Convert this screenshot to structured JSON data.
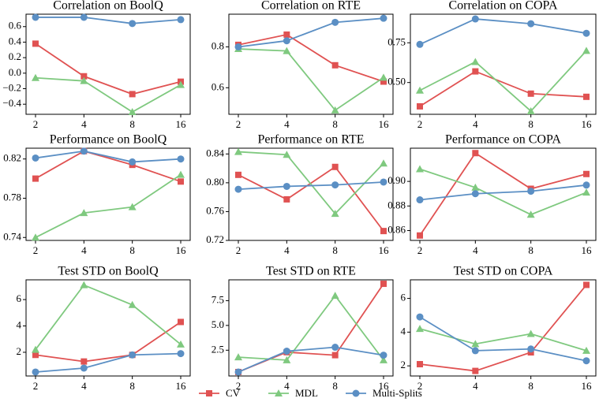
{
  "chart_data": [
    {
      "type": "line",
      "title": "Correlation on BoolQ",
      "categories": [
        "2",
        "4",
        "8",
        "16"
      ],
      "ylim": [
        -0.53,
        0.76
      ],
      "yticks": [
        {
          "value": -0.4,
          "label": "−0.4"
        },
        {
          "value": -0.2,
          "label": "−0.2"
        },
        {
          "value": 0,
          "label": "0.0"
        },
        0.2,
        0.4,
        0.6
      ],
      "series": [
        {
          "name": "CV",
          "color": "#e05252",
          "marker": "square",
          "values": [
            0.38,
            -0.04,
            -0.27,
            -0.11
          ]
        },
        {
          "name": "MDL",
          "color": "#7fc97f",
          "marker": "triangle",
          "values": [
            -0.06,
            -0.1,
            -0.5,
            -0.15
          ]
        },
        {
          "name": "Multi-Splits",
          "color": "#5b8fc4",
          "marker": "circle",
          "values": [
            0.72,
            0.72,
            0.64,
            0.69
          ]
        }
      ]
    },
    {
      "type": "line",
      "title": "Correlation on RTE",
      "categories": [
        "2",
        "4",
        "8",
        "16"
      ],
      "ylim": [
        0.47,
        0.96
      ],
      "yticks": [
        0.6,
        0.8
      ],
      "series": [
        {
          "name": "CV",
          "color": "#e05252",
          "marker": "square",
          "values": [
            0.81,
            0.86,
            0.71,
            0.63
          ]
        },
        {
          "name": "MDL",
          "color": "#7fc97f",
          "marker": "triangle",
          "values": [
            0.79,
            0.78,
            0.49,
            0.65
          ]
        },
        {
          "name": "Multi-Splits",
          "color": "#5b8fc4",
          "marker": "circle",
          "values": [
            0.8,
            0.83,
            0.92,
            0.94
          ]
        }
      ]
    },
    {
      "type": "line",
      "title": "Correlation on COPA",
      "categories": [
        "2",
        "4",
        "8",
        "16"
      ],
      "ylim": [
        0.3,
        0.93
      ],
      "yticks": [
        {
          "value": 0.5,
          "label": "0.50"
        },
        {
          "value": 0.75,
          "label": "0.75"
        }
      ],
      "series": [
        {
          "name": "CV",
          "color": "#e05252",
          "marker": "square",
          "values": [
            0.35,
            0.57,
            0.43,
            0.41
          ]
        },
        {
          "name": "MDL",
          "color": "#7fc97f",
          "marker": "triangle",
          "values": [
            0.45,
            0.63,
            0.32,
            0.7
          ]
        },
        {
          "name": "Multi-Splits",
          "color": "#5b8fc4",
          "marker": "circle",
          "values": [
            0.74,
            0.9,
            0.87,
            0.81
          ]
        }
      ]
    },
    {
      "type": "line",
      "title": "Performance on BoolQ",
      "categories": [
        "2",
        "4",
        "8",
        "16"
      ],
      "ylim": [
        0.737,
        0.831
      ],
      "yticks": [
        0.74,
        0.78,
        0.82
      ],
      "series": [
        {
          "name": "CV",
          "color": "#e05252",
          "marker": "square",
          "values": [
            0.8,
            0.828,
            0.814,
            0.797
          ]
        },
        {
          "name": "MDL",
          "color": "#7fc97f",
          "marker": "triangle",
          "values": [
            0.74,
            0.765,
            0.771,
            0.804
          ]
        },
        {
          "name": "Multi-Splits",
          "color": "#5b8fc4",
          "marker": "circle",
          "values": [
            0.821,
            0.828,
            0.817,
            0.82
          ]
        }
      ]
    },
    {
      "type": "line",
      "title": "Performance on RTE",
      "categories": [
        "2",
        "4",
        "8",
        "16"
      ],
      "ylim": [
        0.72,
        0.848
      ],
      "yticks": [
        0.72,
        0.76,
        {
          "value": 0.8,
          "label": "0.80"
        },
        0.84
      ],
      "series": [
        {
          "name": "CV",
          "color": "#e05252",
          "marker": "square",
          "values": [
            0.811,
            0.777,
            0.822,
            0.733
          ]
        },
        {
          "name": "MDL",
          "color": "#7fc97f",
          "marker": "triangle",
          "values": [
            0.843,
            0.839,
            0.757,
            0.827
          ]
        },
        {
          "name": "Multi-Splits",
          "color": "#5b8fc4",
          "marker": "circle",
          "values": [
            0.791,
            0.795,
            0.797,
            0.801
          ]
        }
      ]
    },
    {
      "type": "line",
      "title": "Performance on COPA",
      "categories": [
        "2",
        "4",
        "8",
        "16"
      ],
      "ylim": [
        0.852,
        0.927
      ],
      "yticks": [
        0.86,
        0.88,
        {
          "value": 0.9,
          "label": "0.90"
        }
      ],
      "series": [
        {
          "name": "CV",
          "color": "#e05252",
          "marker": "square",
          "values": [
            0.856,
            0.923,
            0.894,
            0.906
          ]
        },
        {
          "name": "MDL",
          "color": "#7fc97f",
          "marker": "triangle",
          "values": [
            0.91,
            0.895,
            0.873,
            0.891
          ]
        },
        {
          "name": "Multi-Splits",
          "color": "#5b8fc4",
          "marker": "circle",
          "values": [
            0.885,
            0.89,
            0.892,
            0.897
          ]
        }
      ]
    },
    {
      "type": "line",
      "title": "Test STD on BoolQ",
      "categories": [
        "2",
        "4",
        "8",
        "16"
      ],
      "ylim": [
        0.2,
        7.5
      ],
      "yticks": [
        2,
        4,
        6
      ],
      "series": [
        {
          "name": "CV",
          "color": "#e05252",
          "marker": "square",
          "values": [
            1.8,
            1.3,
            1.8,
            4.3
          ]
        },
        {
          "name": "MDL",
          "color": "#7fc97f",
          "marker": "triangle",
          "values": [
            2.2,
            7.1,
            5.6,
            2.6
          ]
        },
        {
          "name": "Multi-Splits",
          "color": "#5b8fc4",
          "marker": "circle",
          "values": [
            0.5,
            0.8,
            1.8,
            1.9
          ]
        }
      ]
    },
    {
      "type": "line",
      "title": "Test STD on RTE",
      "categories": [
        "2",
        "4",
        "8",
        "16"
      ],
      "ylim": [
        -0.1,
        9.6
      ],
      "yticks": [
        2.5,
        {
          "value": 5,
          "label": "5.0"
        },
        7.5
      ],
      "series": [
        {
          "name": "CV",
          "color": "#e05252",
          "marker": "square",
          "values": [
            0.3,
            2.3,
            2.0,
            9.2
          ]
        },
        {
          "name": "MDL",
          "color": "#7fc97f",
          "marker": "triangle",
          "values": [
            1.8,
            1.5,
            8.0,
            1.5
          ]
        },
        {
          "name": "Multi-Splits",
          "color": "#5b8fc4",
          "marker": "circle",
          "values": [
            0.3,
            2.4,
            2.8,
            2.0
          ]
        }
      ]
    },
    {
      "type": "line",
      "title": "Test STD on COPA",
      "categories": [
        "2",
        "4",
        "8",
        "16"
      ],
      "ylim": [
        1.4,
        7.1
      ],
      "yticks": [
        2,
        4,
        6
      ],
      "series": [
        {
          "name": "CV",
          "color": "#e05252",
          "marker": "square",
          "values": [
            2.1,
            1.7,
            2.8,
            6.8
          ]
        },
        {
          "name": "MDL",
          "color": "#7fc97f",
          "marker": "triangle",
          "values": [
            4.2,
            3.3,
            3.9,
            2.9
          ]
        },
        {
          "name": "Multi-Splits",
          "color": "#5b8fc4",
          "marker": "circle",
          "values": [
            4.9,
            2.9,
            3.0,
            2.3
          ]
        }
      ]
    }
  ]
}
